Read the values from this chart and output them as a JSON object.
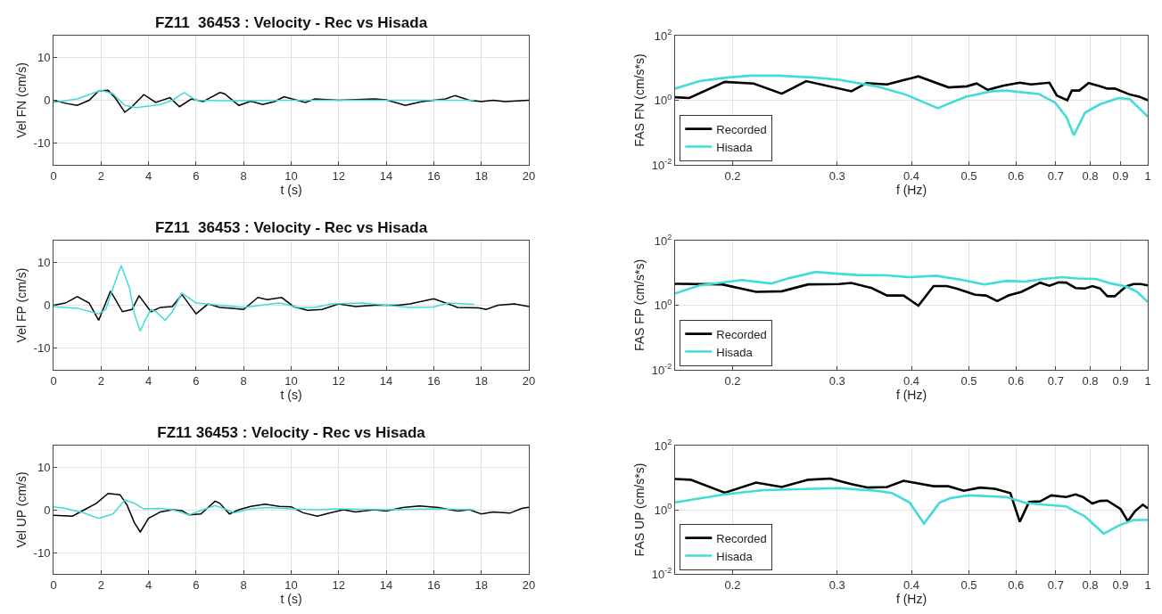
{
  "chart_data": [
    {
      "type": "line",
      "title": "FZ11  36453 : Velocity - Rec vs Hisada",
      "xlabel": "t (s)",
      "ylabel": "Vel FN (cm/s)",
      "xlim": [
        0,
        20
      ],
      "xticks": [
        0,
        2,
        4,
        6,
        8,
        10,
        12,
        14,
        16,
        18,
        20
      ],
      "ylim": [
        -15,
        15
      ],
      "yticks": [
        -10,
        0,
        10
      ],
      "grid": true,
      "legend": false,
      "series": [
        {
          "color": "#000000",
          "x": [
            0,
            0.5,
            1,
            1.5,
            1.9,
            2.3,
            2.6,
            3,
            3.3,
            3.8,
            4.3,
            4.9,
            5.3,
            5.8,
            6.3,
            7,
            7.2,
            7.8,
            8.3,
            8.8,
            9.3,
            9.7,
            10.6,
            11,
            12,
            13.5,
            14,
            14.8,
            15.5,
            16.5,
            16.9,
            17.5,
            18,
            18.5,
            19,
            20
          ],
          "values": [
            0,
            -0.7,
            -1.2,
            0,
            2.2,
            2.3,
            0.5,
            -2.8,
            -1.5,
            1.3,
            -0.5,
            0.6,
            -1.5,
            0.3,
            -0.3,
            1.8,
            1.5,
            -1.2,
            -0.2,
            -1,
            -0.3,
            0.8,
            -0.5,
            0.3,
            0,
            0.3,
            0.1,
            -1.2,
            -0.3,
            0.3,
            1.1,
            0,
            -0.3,
            0,
            -0.3,
            0
          ]
        },
        {
          "color": "#40dcd8",
          "x": [
            0,
            1,
            2,
            2.5,
            3,
            3.5,
            4.5,
            5,
            5.5,
            6,
            7,
            10,
            17.7
          ],
          "values": [
            -0.5,
            0.3,
            2.3,
            1.5,
            -1.2,
            -1.7,
            -1,
            0,
            1.8,
            0,
            -0.1,
            0,
            0
          ]
        }
      ]
    },
    {
      "type": "line",
      "xlabel": "f (Hz)",
      "ylabel": "FAS FN (cm/s*s)",
      "log": "xy",
      "xlim": [
        0.16,
        1
      ],
      "xticks": [
        0.2,
        0.3,
        0.4,
        0.5,
        0.6,
        0.7,
        0.8,
        0.9,
        1
      ],
      "ylim": [
        0.01,
        100
      ],
      "yticks": [
        {
          "value": 0.01,
          "label": "10$^{-2}$"
        },
        {
          "value": 1,
          "label": "10$^{0}$"
        },
        {
          "value": 100,
          "label": "10$^{2}$"
        }
      ],
      "grid": true,
      "legend": "bottom left",
      "series": [
        {
          "name": "Recorded",
          "color": "#000000",
          "x": [
            0.16,
            0.169,
            0.194,
            0.217,
            0.242,
            0.266,
            0.317,
            0.336,
            0.364,
            0.411,
            0.462,
            0.496,
            0.515,
            0.538,
            0.57,
            0.609,
            0.636,
            0.683,
            0.703,
            0.732,
            0.745,
            0.767,
            0.795,
            0.831,
            0.855,
            0.88,
            0.933,
            0.967,
            1
          ],
          "values": [
            1.24,
            1.17,
            3.7,
            3.3,
            1.6,
            3.9,
            1.9,
            3.4,
            3.1,
            5.5,
            2.5,
            2.7,
            3.3,
            2.1,
            2.8,
            3.5,
            3.1,
            3.5,
            1.4,
            1.0,
            2.0,
            2.0,
            3.4,
            2.7,
            2.3,
            2.3,
            1.5,
            1.3,
            1.0
          ]
        },
        {
          "name": "Hisada",
          "color": "#40dcd8",
          "x": [
            0.16,
            0.176,
            0.195,
            0.215,
            0.239,
            0.276,
            0.302,
            0.349,
            0.391,
            0.443,
            0.493,
            0.546,
            0.578,
            0.655,
            0.698,
            0.729,
            0.751,
            0.784,
            0.831,
            0.893,
            0.933,
            1
          ],
          "values": [
            2.3,
            3.9,
            5.0,
            5.8,
            5.8,
            5.0,
            4.3,
            2.7,
            1.5,
            0.57,
            1.27,
            1.9,
            2.0,
            1.57,
            0.85,
            0.31,
            0.082,
            0.41,
            0.75,
            1.17,
            1.08,
            0.31
          ]
        }
      ]
    },
    {
      "type": "line",
      "title": "FZ11  36453 : Velocity - Rec vs Hisada",
      "xlabel": "t (s)",
      "ylabel": "Vel FP (cm/s)",
      "xlim": [
        0,
        20
      ],
      "xticks": [
        0,
        2,
        4,
        6,
        8,
        10,
        12,
        14,
        16,
        18,
        20
      ],
      "ylim": [
        -15,
        15
      ],
      "yticks": [
        -10,
        0,
        10
      ],
      "grid": true,
      "legend": false,
      "series": [
        {
          "color": "#000000",
          "x": [
            0,
            0.5,
            1,
            1.5,
            1.9,
            2.4,
            2.9,
            3.3,
            3.6,
            4.1,
            4.5,
            5,
            5.4,
            6,
            6.5,
            7,
            8,
            8.6,
            9,
            9.6,
            10.1,
            10.7,
            11.3,
            12,
            12.7,
            13.5,
            14.5,
            15,
            16,
            16.5,
            17,
            17.9,
            18.2,
            18.7,
            19.4,
            20
          ],
          "values": [
            0,
            0.5,
            2,
            0.5,
            -3.5,
            3.3,
            -1.5,
            -1,
            2.2,
            -1.5,
            -0.5,
            -0.3,
            2.5,
            -2,
            0.3,
            -0.5,
            -1,
            1.8,
            1.3,
            1.8,
            -0.3,
            -1.2,
            -1,
            0.3,
            -0.3,
            0,
            0,
            0.3,
            1.5,
            0.5,
            -0.5,
            -0.6,
            -1,
            0,
            0.3,
            -0.3
          ]
        },
        {
          "color": "#40dcd8",
          "x": [
            0,
            1,
            1.9,
            2.2,
            2.5,
            2.85,
            3.2,
            3.4,
            3.65,
            3.9,
            4.1,
            4.3,
            4.7,
            5,
            5.4,
            6,
            7,
            8,
            9.5,
            10.3,
            11,
            11.7,
            13,
            14,
            15,
            16,
            16.6,
            17.7
          ],
          "values": [
            -0.3,
            -0.7,
            -2,
            -1,
            4,
            9.2,
            4,
            -2,
            -6,
            -3,
            -1,
            -1.5,
            -3.5,
            -1.5,
            2.8,
            0.5,
            0,
            -0.5,
            0.5,
            -0.5,
            -0.5,
            0.3,
            0.5,
            0,
            -0.5,
            -0.4,
            0.5,
            0.2
          ]
        }
      ]
    },
    {
      "type": "line",
      "xlabel": "f (Hz)",
      "ylabel": "FAS FP (cm/s*s)",
      "log": "xy",
      "xlim": [
        0.16,
        1
      ],
      "xticks": [
        0.2,
        0.3,
        0.4,
        0.5,
        0.6,
        0.7,
        0.8,
        0.9,
        1
      ],
      "ylim": [
        0.01,
        100
      ],
      "yticks": [
        {
          "value": 0.01,
          "label": "10$^{-2}$"
        },
        {
          "value": 1,
          "label": "10$^{0}$"
        },
        {
          "value": 100,
          "label": "10$^{2}$"
        }
      ],
      "grid": true,
      "legend": "bottom left",
      "series": [
        {
          "name": "Recorded",
          "color": "#000000",
          "x": [
            0.16,
            0.192,
            0.219,
            0.242,
            0.268,
            0.302,
            0.317,
            0.343,
            0.364,
            0.388,
            0.411,
            0.436,
            0.459,
            0.479,
            0.512,
            0.534,
            0.558,
            0.583,
            0.613,
            0.659,
            0.683,
            0.708,
            0.729,
            0.756,
            0.784,
            0.807,
            0.831,
            0.855,
            0.88,
            0.919,
            0.946,
            0.974,
            1
          ],
          "values": [
            4.6,
            4.4,
            2.6,
            2.7,
            4.4,
            4.5,
            4.9,
            3.4,
            2.0,
            2.0,
            0.97,
            3.9,
            3.9,
            3.2,
            2.1,
            2.0,
            1.34,
            2.0,
            2.6,
            5.0,
            4.0,
            5.1,
            5.0,
            3.4,
            3.3,
            3.9,
            3.3,
            1.9,
            1.9,
            3.8,
            4.5,
            4.5,
            4.1
          ]
        },
        {
          "name": "Hisada",
          "color": "#40dcd8",
          "x": [
            0.16,
            0.176,
            0.207,
            0.232,
            0.25,
            0.276,
            0.297,
            0.324,
            0.364,
            0.397,
            0.44,
            0.486,
            0.531,
            0.578,
            0.622,
            0.668,
            0.719,
            0.761,
            0.818,
            0.868,
            0.919,
            0.96,
            1
          ],
          "values": [
            2.3,
            4.1,
            6.0,
            4.7,
            7.0,
            10.7,
            9.6,
            8.6,
            8.4,
            7.4,
            8.2,
            6.1,
            4.4,
            5.7,
            5.4,
            6.5,
            7.4,
            6.7,
            6.5,
            4.7,
            3.8,
            2.6,
            1.27
          ]
        }
      ]
    },
    {
      "type": "line",
      "title": "FZ11 36453 : Velocity - Rec vs Hisada",
      "xlabel": "t (s)",
      "ylabel": "Vel UP (cm/s)",
      "xlim": [
        0,
        20
      ],
      "xticks": [
        0,
        2,
        4,
        6,
        8,
        10,
        12,
        14,
        16,
        18,
        20
      ],
      "ylim": [
        -15,
        15
      ],
      "yticks": [
        -10,
        0,
        10
      ],
      "grid": true,
      "legend": false,
      "series": [
        {
          "color": "#000000",
          "x": [
            0,
            0.8,
            1.3,
            1.8,
            2.3,
            2.8,
            3.1,
            3.4,
            3.65,
            4,
            4.5,
            5,
            5.4,
            5.7,
            6.2,
            6.8,
            7,
            7.4,
            7.8,
            8.3,
            8.9,
            9.5,
            10,
            10.5,
            11.1,
            11.6,
            12.2,
            12.7,
            13.5,
            14,
            14.7,
            15.4,
            16.2,
            17,
            17.5,
            18,
            18.5,
            19.2,
            19.7,
            20
          ],
          "values": [
            -1.3,
            -1.5,
            0,
            1.5,
            3.8,
            3.5,
            1,
            -3,
            -5.2,
            -2,
            -0.5,
            0,
            -0.2,
            -1.2,
            -1,
            2,
            1.5,
            -1,
            0,
            0.8,
            1.3,
            0.8,
            0.7,
            -0.7,
            -1.5,
            -0.8,
            0,
            -0.5,
            0,
            -0.3,
            0.5,
            0.9,
            0.5,
            -0.3,
            0,
            -1,
            -0.5,
            -0.8,
            0.3,
            0.6
          ]
        },
        {
          "color": "#40dcd8",
          "x": [
            0,
            0.5,
            1.3,
            1.9,
            2.5,
            3,
            3.4,
            3.8,
            4.5,
            5,
            5.7,
            6.3,
            6.8,
            7.3,
            7.6,
            8.3,
            9,
            10,
            11,
            12,
            14,
            16,
            17.7
          ],
          "values": [
            0.7,
            0.3,
            -0.8,
            -2,
            -1,
            2.3,
            1.5,
            0.2,
            0.3,
            0,
            -1.2,
            0,
            1,
            0,
            -0.7,
            0.2,
            0.5,
            0.2,
            0,
            0.2,
            0,
            0.2,
            0
          ]
        }
      ]
    },
    {
      "type": "line",
      "xlabel": "f (Hz)",
      "ylabel": "FAS UP (cm/s*s)",
      "log": "xy",
      "xlim": [
        0.16,
        1
      ],
      "xticks": [
        0.2,
        0.3,
        0.4,
        0.5,
        0.6,
        0.7,
        0.8,
        0.9,
        1
      ],
      "ylim": [
        0.01,
        100
      ],
      "yticks": [
        {
          "value": 0.01,
          "label": "10$^{-2}$"
        },
        {
          "value": 1,
          "label": "10$^{0}$"
        },
        {
          "value": 100,
          "label": "10$^{2}$"
        }
      ],
      "grid": true,
      "legend": "bottom left",
      "series": [
        {
          "name": "Recorded",
          "color": "#000000",
          "x": [
            0.16,
            0.17,
            0.194,
            0.219,
            0.242,
            0.268,
            0.292,
            0.317,
            0.338,
            0.364,
            0.388,
            0.436,
            0.462,
            0.49,
            0.522,
            0.553,
            0.587,
            0.609,
            0.631,
            0.659,
            0.688,
            0.729,
            0.756,
            0.778,
            0.807,
            0.831,
            0.855,
            0.9,
            0.926,
            0.953,
            0.981,
            1
          ],
          "values": [
            9.1,
            8.6,
            3.4,
            7.0,
            5.1,
            8.6,
            9.4,
            6.3,
            4.9,
            5.1,
            8.0,
            5.4,
            5.4,
            3.9,
            4.9,
            4.5,
            3.3,
            0.42,
            1.74,
            1.83,
            2.8,
            2.5,
            3.0,
            2.5,
            1.56,
            1.88,
            1.93,
            1.05,
            0.44,
            0.92,
            1.44,
            1.11
          ]
        },
        {
          "name": "Hisada",
          "color": "#40dcd8",
          "x": [
            0.16,
            0.194,
            0.225,
            0.302,
            0.349,
            0.371,
            0.397,
            0.42,
            0.446,
            0.465,
            0.5,
            0.578,
            0.622,
            0.668,
            0.729,
            0.784,
            0.843,
            0.893,
            0.946,
            1
          ],
          "values": [
            1.69,
            3.0,
            4.1,
            4.7,
            3.9,
            3.3,
            1.69,
            0.37,
            1.65,
            2.3,
            2.8,
            2.5,
            1.65,
            1.44,
            1.27,
            0.62,
            0.18,
            0.32,
            0.48,
            0.48
          ]
        }
      ]
    }
  ]
}
